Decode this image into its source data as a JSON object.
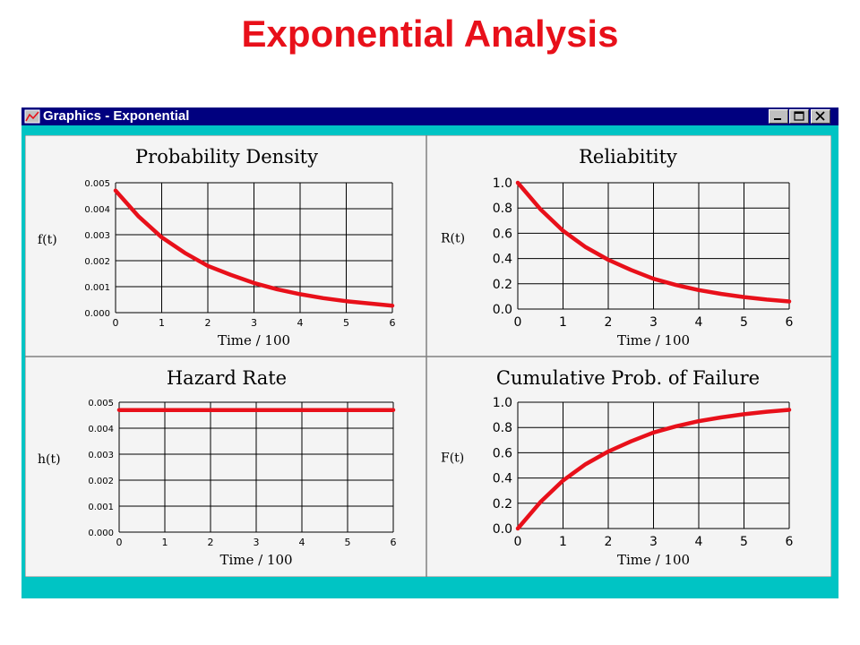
{
  "slide_title": "Exponential Analysis",
  "window": {
    "title": "Graphics - Exponential",
    "icon": "chart-window-icon",
    "controls": [
      "minimize-icon",
      "maximize-icon",
      "close-icon"
    ],
    "colors": {
      "titlebar": "#00007f",
      "frame": "#00c4c4",
      "panel": "#f4f4f4",
      "curve": "#e8101a"
    }
  },
  "chart_data": [
    {
      "type": "line",
      "title": "Probability Density",
      "ylabel": "f(t)",
      "xlabel": "Time / 100",
      "xlim": [
        0,
        6
      ],
      "ylim": [
        0,
        0.005
      ],
      "x_ticks": [
        "0",
        "1",
        "2",
        "3",
        "4",
        "5",
        "6"
      ],
      "y_ticks": [
        "0.000",
        "0.001",
        "0.002",
        "0.003",
        "0.004",
        "0.005"
      ],
      "grid": true,
      "series": [
        {
          "x": [
            0,
            0.5,
            1,
            1.5,
            2,
            2.5,
            3,
            3.5,
            4,
            4.5,
            5,
            5.5,
            6
          ],
          "y": [
            0.0047,
            0.0037,
            0.0029,
            0.0023,
            0.0018,
            0.00145,
            0.00114,
            0.0009,
            0.00071,
            0.00056,
            0.00044,
            0.00035,
            0.00027
          ]
        }
      ]
    },
    {
      "type": "line",
      "title": "Reliabitity",
      "ylabel": "R(t)",
      "xlabel": "Time / 100",
      "xlim": [
        0,
        6
      ],
      "ylim": [
        0,
        1.0
      ],
      "x_ticks": [
        "0",
        "1",
        "2",
        "3",
        "4",
        "5",
        "6"
      ],
      "y_ticks": [
        "0.0",
        "0.2",
        "0.4",
        "0.6",
        "0.8",
        "1.0"
      ],
      "grid": true,
      "series": [
        {
          "x": [
            0,
            0.5,
            1,
            1.5,
            2,
            2.5,
            3,
            3.5,
            4,
            4.5,
            5,
            5.5,
            6
          ],
          "y": [
            1.0,
            0.79,
            0.62,
            0.49,
            0.39,
            0.31,
            0.24,
            0.19,
            0.15,
            0.12,
            0.095,
            0.075,
            0.06
          ]
        }
      ]
    },
    {
      "type": "line",
      "title": "Hazard Rate",
      "ylabel": "h(t)",
      "xlabel": "Time / 100",
      "xlim": [
        0,
        6
      ],
      "ylim": [
        0,
        0.005
      ],
      "x_ticks": [
        "0",
        "1",
        "2",
        "3",
        "4",
        "5",
        "6"
      ],
      "y_ticks": [
        "0.000",
        "0.001",
        "0.002",
        "0.003",
        "0.004",
        "0.005"
      ],
      "grid": true,
      "series": [
        {
          "x": [
            0,
            6
          ],
          "y": [
            0.0047,
            0.0047
          ]
        }
      ]
    },
    {
      "type": "line",
      "title": "Cumulative Prob. of Failure",
      "ylabel": "F(t)",
      "xlabel": "Time / 100",
      "xlim": [
        0,
        6
      ],
      "ylim": [
        0,
        1.0
      ],
      "x_ticks": [
        "0",
        "1",
        "2",
        "3",
        "4",
        "5",
        "6"
      ],
      "y_ticks": [
        "0.0",
        "0.2",
        "0.4",
        "0.6",
        "0.8",
        "1.0"
      ],
      "grid": true,
      "series": [
        {
          "x": [
            0,
            0.5,
            1,
            1.5,
            2,
            2.5,
            3,
            3.5,
            4,
            4.5,
            5,
            5.5,
            6
          ],
          "y": [
            0.0,
            0.21,
            0.38,
            0.51,
            0.61,
            0.69,
            0.76,
            0.81,
            0.85,
            0.88,
            0.905,
            0.925,
            0.94
          ]
        }
      ]
    }
  ]
}
